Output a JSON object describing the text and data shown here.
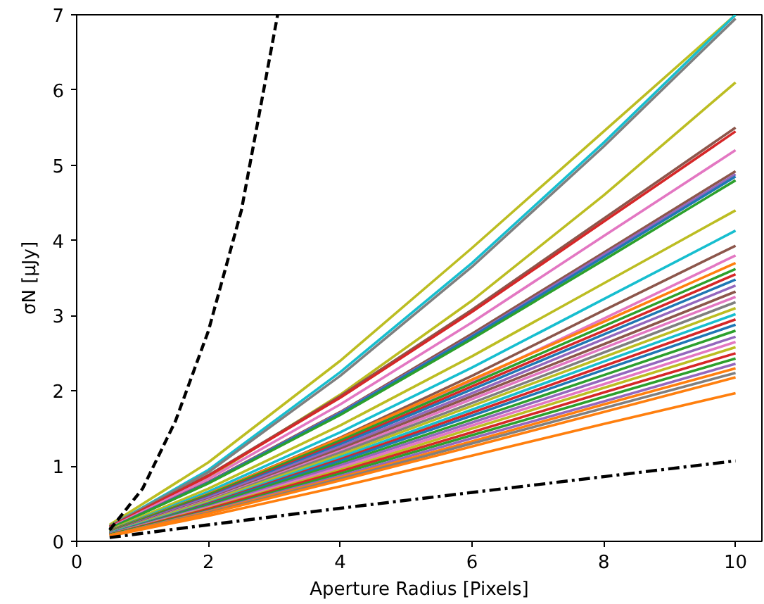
{
  "chart_data": {
    "type": "line",
    "xlabel": "Aperture Radius [Pixels]",
    "ylabel": "σN [μJy]",
    "xlim": [
      0,
      10.4
    ],
    "ylim": [
      0,
      7
    ],
    "xticks": [
      0,
      2,
      4,
      6,
      8,
      10
    ],
    "yticks": [
      0,
      1,
      2,
      3,
      4,
      5,
      6,
      7
    ],
    "x": [
      0.5,
      2,
      4,
      6,
      8,
      10
    ],
    "series": [
      {
        "color": "#bcbd22",
        "values": [
          0.22,
          1.05,
          2.4,
          3.9,
          5.45,
          7.0
        ]
      },
      {
        "color": "#17becf",
        "values": [
          0.2,
          0.95,
          2.25,
          3.7,
          5.3,
          7.0
        ]
      },
      {
        "color": "#7f7f7f",
        "values": [
          0.2,
          0.92,
          2.2,
          3.65,
          5.25,
          6.95
        ]
      },
      {
        "color": "#bcbd22",
        "values": [
          0.18,
          0.85,
          1.95,
          3.2,
          4.6,
          6.1
        ]
      },
      {
        "color": "#8c564b",
        "values": [
          0.19,
          0.88,
          1.93,
          3.08,
          4.29,
          5.5
        ]
      },
      {
        "color": "#d62728",
        "values": [
          0.19,
          0.87,
          1.91,
          3.05,
          4.25,
          5.45
        ]
      },
      {
        "color": "#e377c2",
        "values": [
          0.18,
          0.83,
          1.82,
          2.91,
          4.06,
          5.2
        ]
      },
      {
        "color": "#8c564b",
        "values": [
          0.17,
          0.79,
          1.72,
          2.76,
          3.84,
          4.92
        ]
      },
      {
        "color": "#9467bd",
        "values": [
          0.17,
          0.78,
          1.71,
          2.73,
          3.81,
          4.88
        ]
      },
      {
        "color": "#1f77b4",
        "values": [
          0.17,
          0.78,
          1.7,
          2.72,
          3.78,
          4.85
        ]
      },
      {
        "color": "#2ca02c",
        "values": [
          0.17,
          0.77,
          1.68,
          2.69,
          3.74,
          4.8
        ]
      },
      {
        "color": "#bcbd22",
        "values": [
          0.15,
          0.7,
          1.54,
          2.46,
          3.43,
          4.4
        ]
      },
      {
        "color": "#17becf",
        "values": [
          0.14,
          0.66,
          1.45,
          2.31,
          3.22,
          4.13
        ]
      },
      {
        "color": "#8c564b",
        "values": [
          0.14,
          0.63,
          1.38,
          2.2,
          3.07,
          3.93
        ]
      },
      {
        "color": "#e377c2",
        "values": [
          0.13,
          0.61,
          1.33,
          2.13,
          2.96,
          3.8
        ]
      },
      {
        "color": "#ff7f0e",
        "values": [
          0.13,
          0.63,
          1.37,
          2.15,
          2.92,
          3.7
        ]
      },
      {
        "color": "#2ca02c",
        "values": [
          0.13,
          0.62,
          1.34,
          2.1,
          2.86,
          3.62
        ]
      },
      {
        "color": "#d62728",
        "values": [
          0.12,
          0.6,
          1.31,
          2.06,
          2.8,
          3.55
        ]
      },
      {
        "color": "#1f77b4",
        "values": [
          0.12,
          0.59,
          1.29,
          2.02,
          2.75,
          3.48
        ]
      },
      {
        "color": "#9467bd",
        "values": [
          0.12,
          0.58,
          1.26,
          1.97,
          2.69,
          3.4
        ]
      },
      {
        "color": "#8c564b",
        "values": [
          0.12,
          0.56,
          1.23,
          1.93,
          2.62,
          3.32
        ]
      },
      {
        "color": "#e377c2",
        "values": [
          0.11,
          0.55,
          1.2,
          1.89,
          2.57,
          3.25
        ]
      },
      {
        "color": "#7f7f7f",
        "values": [
          0.11,
          0.54,
          1.18,
          1.84,
          2.51,
          3.18
        ]
      },
      {
        "color": "#bcbd22",
        "values": [
          0.11,
          0.53,
          1.15,
          1.8,
          2.45,
          3.1
        ]
      },
      {
        "color": "#17becf",
        "values": [
          0.11,
          0.51,
          1.12,
          1.75,
          2.39,
          3.02
        ]
      },
      {
        "color": "#d62728",
        "values": [
          0.1,
          0.5,
          1.09,
          1.71,
          2.33,
          2.95
        ]
      },
      {
        "color": "#1f77b4",
        "values": [
          0.1,
          0.49,
          1.07,
          1.67,
          2.28,
          2.88
        ]
      },
      {
        "color": "#2ca02c",
        "values": [
          0.1,
          0.48,
          1.04,
          1.62,
          2.21,
          2.8
        ]
      },
      {
        "color": "#9467bd",
        "values": [
          0.1,
          0.46,
          1.01,
          1.58,
          2.15,
          2.72
        ]
      },
      {
        "color": "#e377c2",
        "values": [
          0.09,
          0.45,
          0.98,
          1.54,
          2.09,
          2.65
        ]
      },
      {
        "color": "#bcbd22",
        "values": [
          0.09,
          0.44,
          0.95,
          1.5,
          2.04,
          2.58
        ]
      },
      {
        "color": "#d62728",
        "values": [
          0.09,
          0.43,
          0.93,
          1.45,
          1.98,
          2.5
        ]
      },
      {
        "color": "#2ca02c",
        "values": [
          0.09,
          0.41,
          0.9,
          1.41,
          1.92,
          2.43
        ]
      },
      {
        "color": "#9467bd",
        "values": [
          0.08,
          0.4,
          0.87,
          1.37,
          1.86,
          2.36
        ]
      },
      {
        "color": "#ff7f0e",
        "values": [
          0.08,
          0.39,
          0.85,
          1.33,
          1.82,
          2.3
        ]
      },
      {
        "color": "#7f7f7f",
        "values": [
          0.08,
          0.38,
          0.83,
          1.3,
          1.77,
          2.24
        ]
      },
      {
        "color": "#ff7f0e",
        "values": [
          0.08,
          0.37,
          0.81,
          1.26,
          1.72,
          2.18
        ]
      },
      {
        "color": "#ff7f0e",
        "values": [
          0.07,
          0.34,
          0.73,
          1.14,
          1.56,
          1.97
        ]
      },
      {
        "color": "#000000",
        "line_style": "dashdot",
        "values": [
          0.05,
          0.22,
          0.44,
          0.65,
          0.86,
          1.07
        ]
      },
      {
        "color": "#000000",
        "line_style": "dashed",
        "x": [
          0.5,
          1,
          1.5,
          2,
          2.5,
          3.05
        ],
        "values": [
          0.15,
          0.7,
          1.6,
          2.8,
          4.4,
          7.0
        ]
      }
    ]
  }
}
